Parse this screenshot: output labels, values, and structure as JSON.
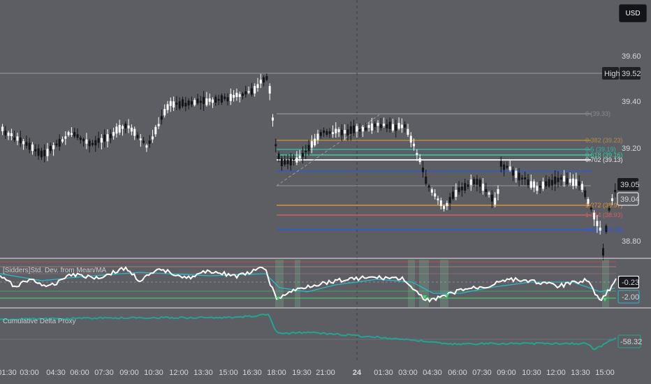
{
  "currency_button": "USD",
  "price_axis": {
    "ticks": [
      "39.60",
      "39.40",
      "39.20",
      "38.80"
    ],
    "high_label": "High",
    "high_value": "39.52",
    "last_price": "39.05",
    "current_price": "39.04"
  },
  "time_axis": {
    "ticks": [
      "01:30",
      "03:00",
      "04:30",
      "06:00",
      "07:30",
      "09:00",
      "10:30",
      "12:00",
      "13:30",
      "15:00",
      "16:30",
      "18:00",
      "19:30",
      "21:00",
      "24",
      "01:30",
      "03:00",
      "04:30",
      "06:00",
      "07:30",
      "09:00",
      "10:30",
      "12:00",
      "13:30",
      "15:00"
    ]
  },
  "fib_levels": [
    {
      "label": "0 (39.33)",
      "color": "#8a8b90"
    },
    {
      "label": "0.382 (39.23)",
      "color": "#b58a4a"
    },
    {
      "label": "0.5 (39.19)",
      "color": "#2fb7a7"
    },
    {
      "label": "0.618 (39.16)",
      "color": "#2fd4a6"
    },
    {
      "label": "0.702 (39.13)",
      "color": "#e8e8ea"
    },
    {
      "label": "1.272 (38.97)",
      "color": "#e0922f"
    },
    {
      "label": "1.414 (38.93)",
      "color": "#d35f5f"
    },
    {
      "label": "1.618 (38.88)",
      "color": "#2d5ad6"
    }
  ],
  "indicator1": {
    "title": "[Sidders]Std. Dev. from Mean/MA",
    "value_white": "-0.23",
    "value_teal": "-2.00"
  },
  "indicator2": {
    "title": "Cumulative Delta Proxy",
    "value": "-58.32"
  },
  "colors": {
    "background": "#5d5e63",
    "candle_up": "#ffffff",
    "candle_down": "#131417",
    "std_line": "#ffffff",
    "mean_line": "#2bb7c9",
    "delta_line": "#1fa692",
    "green_signal": "#3ddc6b"
  }
}
